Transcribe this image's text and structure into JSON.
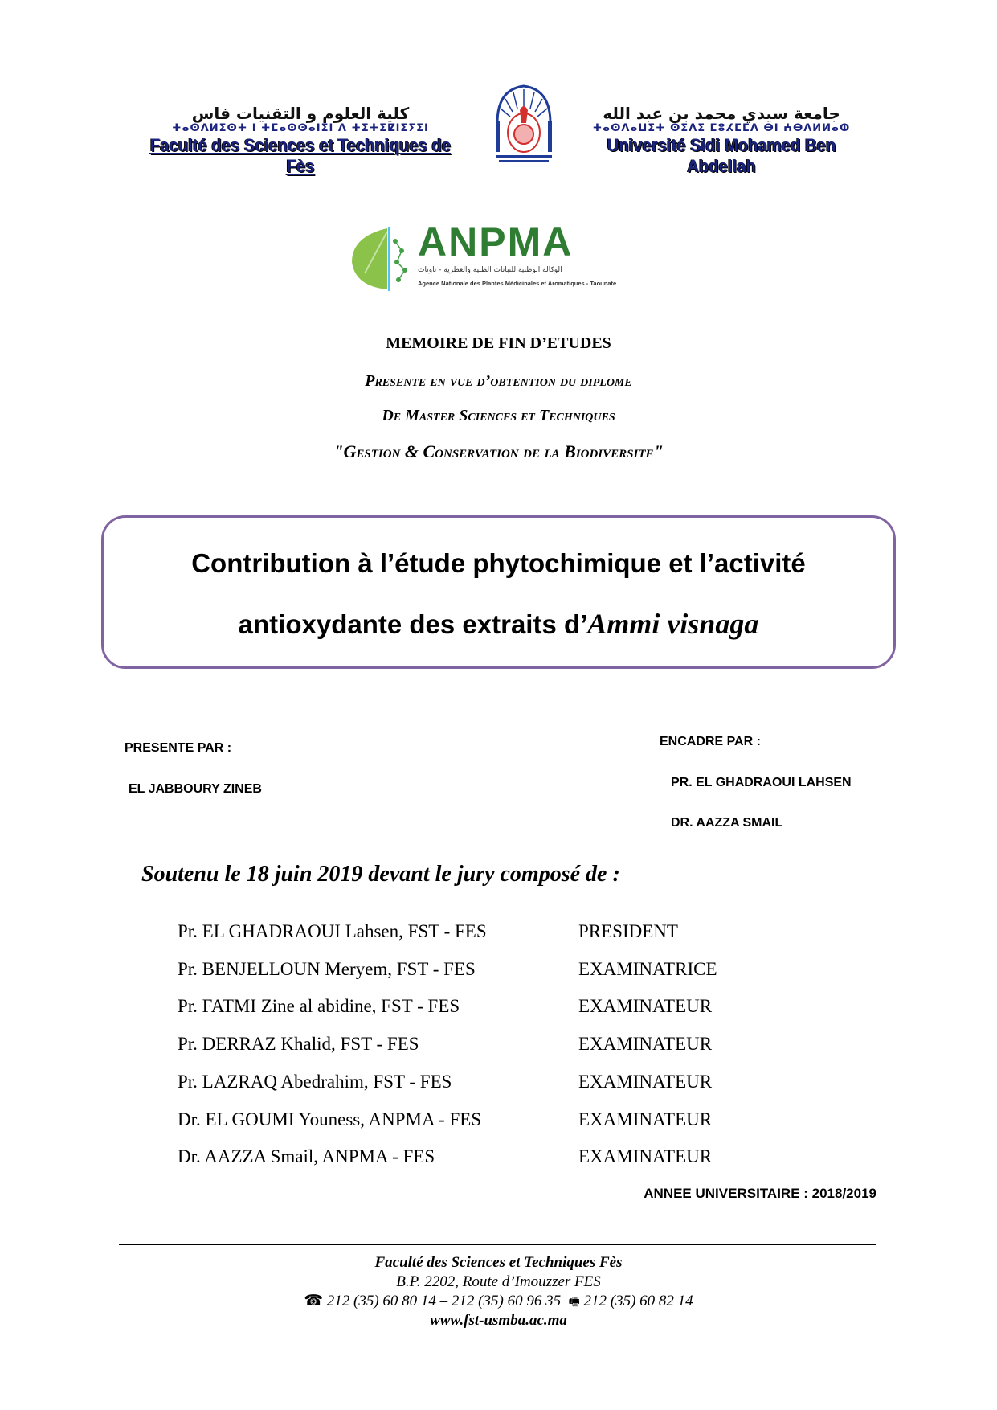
{
  "logos": {
    "fst": {
      "arabic": "كلية العلوم و التقنيات فاس",
      "tifinagh": "ⵜⴰⵙⴷⵍⵉⵙⵜ ⵏ ⵜⵎⴰⵙⵙⴰⵏⵉⵏ ⴷ ⵜⵉⵜⵉⵇⵏⵉⵢⵉⵏ",
      "latin": "Faculté des Sciences et Techniques de Fès"
    },
    "usmba": {
      "arabic": "جامعة سيدي محمد بن عبد الله",
      "tifinagh": "ⵜⴰⵙⴷⴰⵡⵉⵜ ⵙⵉⴷⵉ ⵎⵓⵃⵎⵎⴷ ⴱⵏ ⵄⴱⴷⵍⵍⴰⵀ",
      "latin": "Université Sidi Mohamed Ben Abdellah"
    },
    "anpma": {
      "word": "ANPMA",
      "arabic": "الوكالة الوطنية للنباتات الطبية والعطرية - تاونات",
      "subtitle": "Agence Nationale des Plantes Médicinales et Aromatiques - Taounate"
    }
  },
  "heading": {
    "memoire": "MEMOIRE DE FIN D’ETUDES",
    "line1": "Presente en vue d’obtention du diplome",
    "line2": "De Master Sciences et Techniques",
    "line3": "\"Gestion & Conservation de la Biodiversite\""
  },
  "title": {
    "line1": "Contribution à l’étude phytochimique et l’activité",
    "line2_prefix": "antioxydante des extraits d’",
    "line2_species": "Ammi visnaga"
  },
  "presented": {
    "label": "PRESENTE PAR :",
    "name": "EL JABBOURY ZINEB"
  },
  "supervised": {
    "label": "ENCADRE PAR :",
    "names": [
      "PR. EL GHADRAOUI LAHSEN",
      "DR. AAZZA SMAIL"
    ]
  },
  "defense": "Soutenu le 18 juin 2019 devant le jury composé de :",
  "jury": [
    {
      "name": "Pr. EL GHADRAOUI Lahsen, FST - FES",
      "role": "PRESIDENT"
    },
    {
      "name": "Pr. BENJELLOUN Meryem, FST - FES",
      "role": "EXAMINATRICE"
    },
    {
      "name": "Pr. FATMI Zine al abidine, FST - FES",
      "role": "EXAMINATEUR"
    },
    {
      "name": "Pr. DERRAZ Khalid, FST - FES",
      "role": "EXAMINATEUR"
    },
    {
      "name": "Pr. LAZRAQ Abedrahim, FST - FES",
      "role": "EXAMINATEUR"
    },
    {
      "name": "Dr. EL GOUMI Youness, ANPMA - FES",
      "role": "EXAMINATEUR"
    },
    {
      "name": "Dr. AAZZA Smail, ANPMA - FES",
      "role": "EXAMINATEUR"
    }
  ],
  "academic_year": "ANNEE UNIVERSITAIRE : 2018/2019",
  "footer": {
    "institution": "Faculté des Sciences et Techniques Fès",
    "address": "B.P. 2202, Route d’Imouzzer FES",
    "phone": "212 (35) 60 80 14 – 212 (35) 60 96 35",
    "fax": "212 (35) 60 82 14",
    "website": "www.fst-usmba.ac.ma",
    "phone_icon": "telephone-icon",
    "fax_icon": "fax-icon"
  },
  "colors": {
    "box_border": "#8064a2",
    "anpma_green": "#2e7d32",
    "anpma_red": "#d32f2f",
    "logo_blue": "#1a237e"
  }
}
